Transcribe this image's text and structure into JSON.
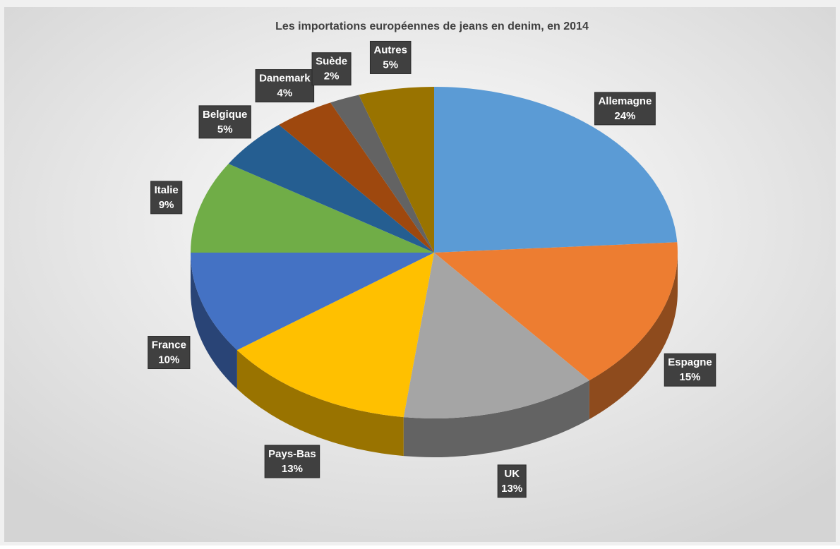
{
  "chart_data": {
    "type": "pie3d",
    "title": "Les importations européennes de jeans en denim, en 2014",
    "categories": [
      "Allemagne",
      "Espagne",
      "UK",
      "Pays-Bas",
      "France",
      "Italie",
      "Belgique",
      "Danemark",
      "Suède",
      "Autres"
    ],
    "values": [
      24,
      15,
      13,
      13,
      10,
      9,
      5,
      4,
      2,
      5
    ],
    "value_labels": [
      "24%",
      "15%",
      "13%",
      "13%",
      "10%",
      "9%",
      "5%",
      "4%",
      "2%",
      "5%"
    ],
    "colors": [
      "#5b9bd5",
      "#ed7d31",
      "#a5a5a5",
      "#ffc000",
      "#4472c4",
      "#70ad47",
      "#255e91",
      "#9e480e",
      "#636363",
      "#997300"
    ]
  }
}
